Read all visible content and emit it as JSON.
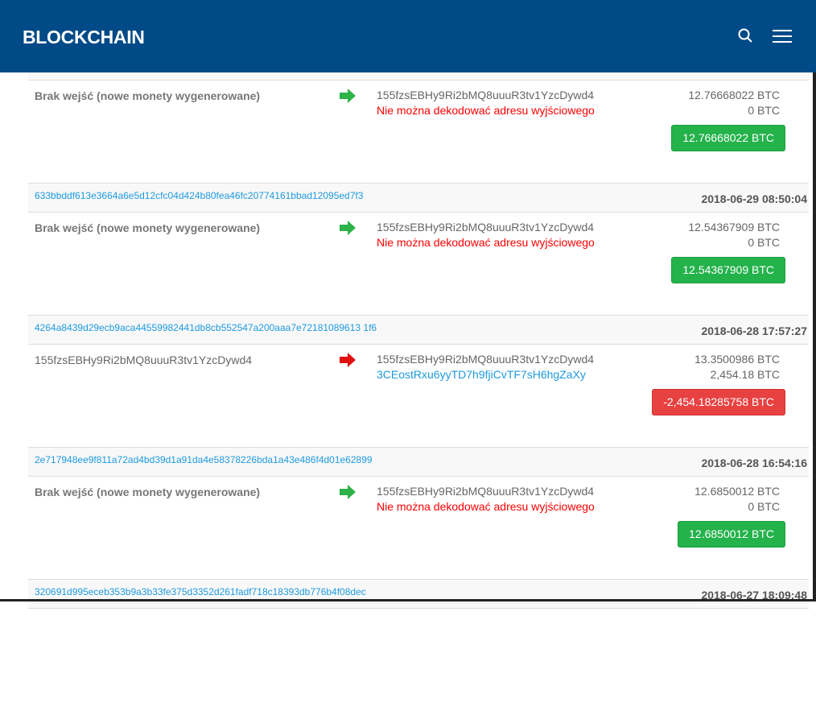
{
  "header": {
    "logo": "BLOCKCHAIN",
    "search_icon": "search-icon",
    "menu_icon": "hamburger-menu-icon",
    "color": "#004a87"
  },
  "colors": {
    "link": "#1e9ae0",
    "positive": "#24b24b",
    "negative": "#e74141",
    "error": "#ff0000"
  },
  "transactions": [
    {
      "hash": "",
      "date": "",
      "input": "Brak wejść (nowe monety wygenerowane)",
      "coinbase": true,
      "direction": "in",
      "outputs": [
        {
          "text": "155fzsEBHy9Ri2bMQ8uuuR3tv1YzcDywd4",
          "type": "addr"
        },
        {
          "text": "Nie można dekodować adresu wyjściowego",
          "type": "err"
        }
      ],
      "amounts": [
        "12.76668022 BTC",
        "0 BTC"
      ],
      "total": "12.76668022 BTC"
    },
    {
      "hash": "633bbddf613e3664a6e5d12cfc04d424b80fea46fc20774161bbad12095ed7f3",
      "date": "2018-06-29 08:50:04",
      "input": "Brak wejść (nowe monety wygenerowane)",
      "coinbase": true,
      "direction": "in",
      "outputs": [
        {
          "text": "155fzsEBHy9Ri2bMQ8uuuR3tv1YzcDywd4",
          "type": "addr"
        },
        {
          "text": "Nie można dekodować adresu wyjściowego",
          "type": "err"
        }
      ],
      "amounts": [
        "12.54367909 BTC",
        "0 BTC"
      ],
      "total": "12.54367909 BTC"
    },
    {
      "hash": "4264a8439d29ecb9aca44559982441db8cb552547a200aaa7e72181089613 1f6",
      "date": "2018-06-28 17:57:27",
      "input": "155fzsEBHy9Ri2bMQ8uuuR3tv1YzcDywd4",
      "coinbase": false,
      "direction": "out",
      "outputs": [
        {
          "text": "155fzsEBHy9Ri2bMQ8uuuR3tv1YzcDywd4",
          "type": "addr"
        },
        {
          "text": "3CEostRxu6yyTD7h9fjiCvTF7sH6hgZaXy",
          "type": "link"
        }
      ],
      "amounts": [
        "13.3500986 BTC",
        "2,454.18 BTC"
      ],
      "total": "-2,454.18285758 BTC"
    },
    {
      "hash": "2e717948ee9f811a72ad4bd39d1a91da4e58378226bda1a43e486f4d01e62899",
      "date": "2018-06-28 16:54:16",
      "input": "Brak wejść (nowe monety wygenerowane)",
      "coinbase": true,
      "direction": "in",
      "outputs": [
        {
          "text": "155fzsEBHy9Ri2bMQ8uuuR3tv1YzcDywd4",
          "type": "addr"
        },
        {
          "text": "Nie można dekodować adresu wyjściowego",
          "type": "err"
        }
      ],
      "amounts": [
        "12.6850012 BTC",
        "0 BTC"
      ],
      "total": "12.6850012 BTC"
    },
    {
      "hash": "320691d995eceb353b9a3b33fe375d3352d261fadf718c18393db776b4f08dec",
      "date": "2018-06-27 18:09:48"
    }
  ]
}
